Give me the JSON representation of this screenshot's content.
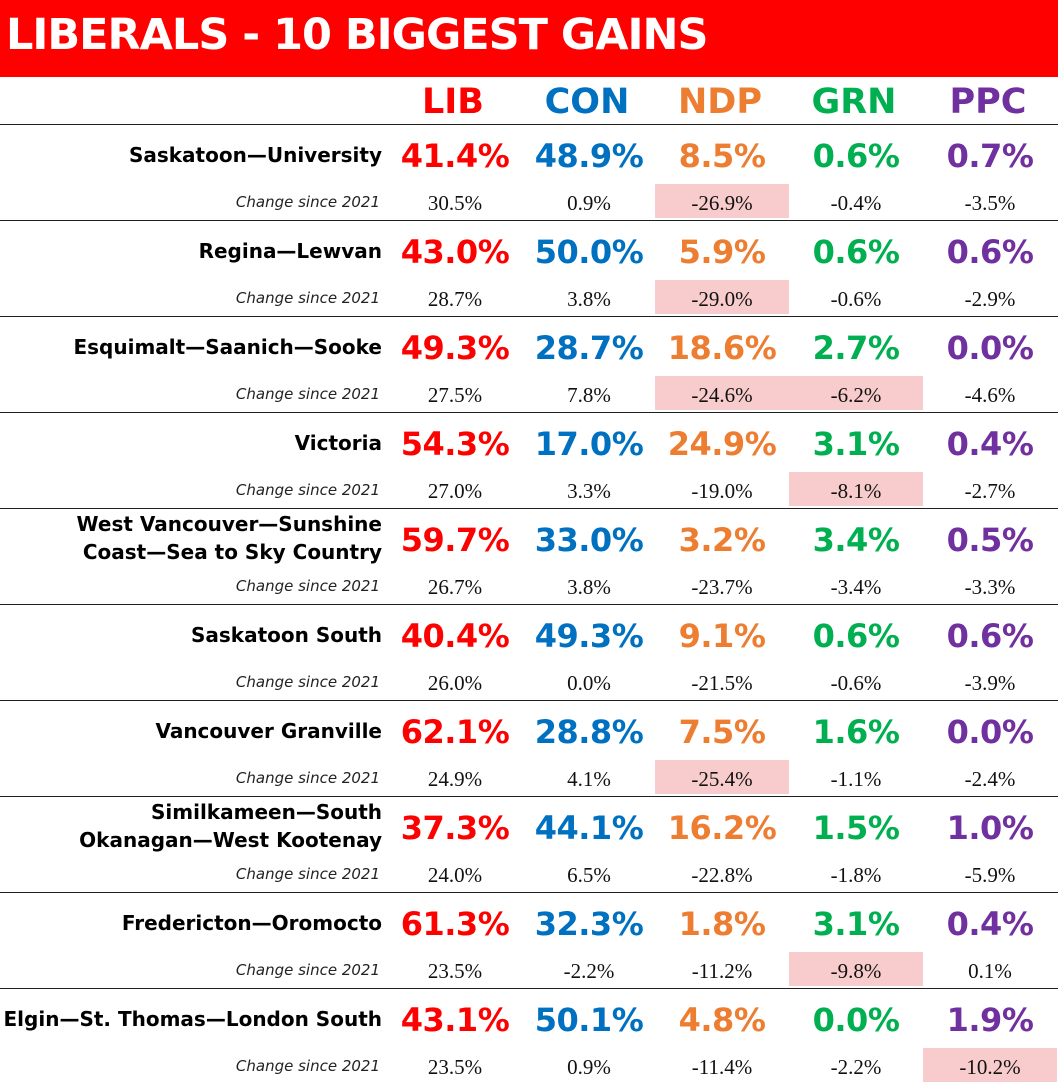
{
  "title": "LIBERALS - 10 BIGGEST GAINS",
  "colors": {
    "title_bg": "#ff0000",
    "LIB": "#ff0000",
    "CON": "#0070c0",
    "NDP": "#ed7d31",
    "GRN": "#00b050",
    "PPC": "#7030a0",
    "highlight": "#f8cccc"
  },
  "change_label": "Change since 2021",
  "chart_data": {
    "type": "table",
    "title": "LIBERALS - 10 BIGGEST GAINS",
    "columns": [
      "LIB",
      "CON",
      "NDP",
      "GRN",
      "PPC"
    ],
    "rows": [
      {
        "riding": [
          "Saskatoon—University"
        ],
        "vote": [
          "41.4%",
          "48.9%",
          "8.5%",
          "0.6%",
          "0.7%"
        ],
        "change": [
          "30.5%",
          "0.9%",
          "-26.9%",
          "-0.4%",
          "-3.5%"
        ],
        "highlight": [
          false,
          false,
          true,
          false,
          false
        ]
      },
      {
        "riding": [
          "Regina—Lewvan"
        ],
        "vote": [
          "43.0%",
          "50.0%",
          "5.9%",
          "0.6%",
          "0.6%"
        ],
        "change": [
          "28.7%",
          "3.8%",
          "-29.0%",
          "-0.6%",
          "-2.9%"
        ],
        "highlight": [
          false,
          false,
          true,
          false,
          false
        ]
      },
      {
        "riding": [
          "Esquimalt—Saanich—Sooke"
        ],
        "vote": [
          "49.3%",
          "28.7%",
          "18.6%",
          "2.7%",
          "0.0%"
        ],
        "change": [
          "27.5%",
          "7.8%",
          "-24.6%",
          "-6.2%",
          "-4.6%"
        ],
        "highlight": [
          false,
          false,
          true,
          true,
          false
        ]
      },
      {
        "riding": [
          "Victoria"
        ],
        "vote": [
          "54.3%",
          "17.0%",
          "24.9%",
          "3.1%",
          "0.4%"
        ],
        "change": [
          "27.0%",
          "3.3%",
          "-19.0%",
          "-8.1%",
          "-2.7%"
        ],
        "highlight": [
          false,
          false,
          false,
          true,
          false
        ]
      },
      {
        "riding": [
          "West Vancouver—Sunshine",
          "Coast—Sea to Sky Country"
        ],
        "vote": [
          "59.7%",
          "33.0%",
          "3.2%",
          "3.4%",
          "0.5%"
        ],
        "change": [
          "26.7%",
          "3.8%",
          "-23.7%",
          "-3.4%",
          "-3.3%"
        ],
        "highlight": [
          false,
          false,
          false,
          false,
          false
        ]
      },
      {
        "riding": [
          "Saskatoon South"
        ],
        "vote": [
          "40.4%",
          "49.3%",
          "9.1%",
          "0.6%",
          "0.6%"
        ],
        "change": [
          "26.0%",
          "0.0%",
          "-21.5%",
          "-0.6%",
          "-3.9%"
        ],
        "highlight": [
          false,
          false,
          false,
          false,
          false
        ]
      },
      {
        "riding": [
          "Vancouver Granville"
        ],
        "vote": [
          "62.1%",
          "28.8%",
          "7.5%",
          "1.6%",
          "0.0%"
        ],
        "change": [
          "24.9%",
          "4.1%",
          "-25.4%",
          "-1.1%",
          "-2.4%"
        ],
        "highlight": [
          false,
          false,
          true,
          false,
          false
        ]
      },
      {
        "riding": [
          "Similkameen—South",
          "Okanagan—West Kootenay"
        ],
        "vote": [
          "37.3%",
          "44.1%",
          "16.2%",
          "1.5%",
          "1.0%"
        ],
        "change": [
          "24.0%",
          "6.5%",
          "-22.8%",
          "-1.8%",
          "-5.9%"
        ],
        "highlight": [
          false,
          false,
          false,
          false,
          false
        ]
      },
      {
        "riding": [
          "Fredericton—Oromocto"
        ],
        "vote": [
          "61.3%",
          "32.3%",
          "1.8%",
          "3.1%",
          "0.4%"
        ],
        "change": [
          "23.5%",
          "-2.2%",
          "-11.2%",
          "-9.8%",
          "0.1%"
        ],
        "highlight": [
          false,
          false,
          false,
          true,
          false
        ]
      },
      {
        "riding": [
          "Elgin—St. Thomas—London South"
        ],
        "vote": [
          "43.1%",
          "50.1%",
          "4.8%",
          "0.0%",
          "1.9%"
        ],
        "change": [
          "23.5%",
          "0.9%",
          "-11.4%",
          "-2.2%",
          "-10.2%"
        ],
        "highlight": [
          false,
          false,
          false,
          false,
          true
        ]
      }
    ]
  }
}
